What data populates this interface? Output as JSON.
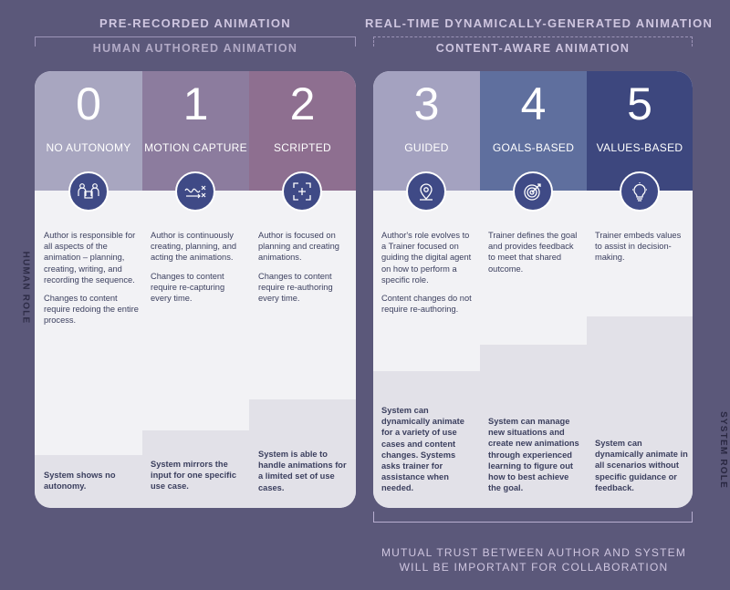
{
  "headers": {
    "left": "Pre-Recorded Animation",
    "right": "Real-Time Dynamically-Generated Animation",
    "left_sub": "Human Authored Animation",
    "right_sub": "Content-Aware Animation"
  },
  "side_labels": {
    "left": "Human Role",
    "right": "System Role"
  },
  "footer": {
    "line1": "Mutual trust between author and system",
    "line2": "will be important for collaboration"
  },
  "levels": [
    {
      "number": "0",
      "title": "No Autonomy",
      "icon": "people-puzzle-icon",
      "color": "#a8a6c0",
      "desc": [
        "Author is responsible for all aspects of the animation – planning, creating, writing, and recording the sequence.",
        "Changes to content require redoing the entire process."
      ],
      "system": "System shows no autonomy.",
      "system_level": 0.12
    },
    {
      "number": "1",
      "title": "Motion Capture",
      "icon": "motion-path-icon",
      "color": "#8c7c9e",
      "desc": [
        "Author is continuously creating, planning, and acting the animations.",
        "Changes to content require re-capturing every time."
      ],
      "system": "System mirrors the input for one specific use case.",
      "system_level": 0.2
    },
    {
      "number": "2",
      "title": "Scripted",
      "icon": "crosshair-icon",
      "color": "#8e6f90",
      "desc": [
        "Author is focused on planning and creating animations.",
        "Changes to content require re-authoring every time."
      ],
      "system": "System is able to handle animations for a limited set of use cases.",
      "system_level": 0.28
    },
    {
      "number": "3",
      "title": "Guided",
      "icon": "location-pin-icon",
      "color": "#a4a2c0",
      "desc": [
        "Author's role evolves to a Trainer focused on guiding the digital agent on how to perform a specific role.",
        "Content changes do not require re-authoring."
      ],
      "system": "System can dynamically animate for a variety of use cases and content changes. Systems asks trainer for assistance when needed.",
      "system_level": 0.36
    },
    {
      "number": "4",
      "title": "Goals-Based",
      "icon": "target-icon",
      "color": "#5f6f9e",
      "desc": [
        "Trainer defines the goal and provides feedback to meet that shared outcome."
      ],
      "system": "System can manage new situations and create new animations through experienced learning to figure out how to best achieve the goal.",
      "system_level": 0.44
    },
    {
      "number": "5",
      "title": "Values-Based",
      "icon": "lightbulb-icon",
      "color": "#3d477e",
      "desc": [
        "Trainer embeds values to assist in decision-making."
      ],
      "system": "System can dynamically animate in all scenarios without specific guidance or feedback.",
      "system_level": 0.52
    }
  ]
}
